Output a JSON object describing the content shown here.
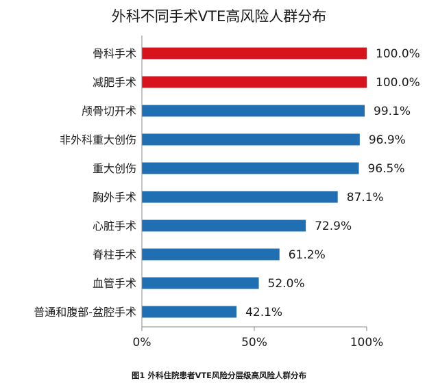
{
  "chart_data": {
    "type": "bar",
    "orientation": "horizontal",
    "title": "外科不同手术VTE高风险人群分布",
    "categories": [
      "骨科手术",
      "减肥手术",
      "颅骨切开术",
      "非外科重大创伤",
      "重大创伤",
      "胸外手术",
      "心脏手术",
      "脊柱手术",
      "血管手术",
      "普通和腹部-盆腔手术"
    ],
    "values": [
      100.0,
      100.0,
      99.1,
      96.9,
      96.5,
      87.1,
      72.9,
      61.2,
      52.0,
      42.1
    ],
    "value_labels": [
      "100.0%",
      "100.0%",
      "99.1%",
      "96.9%",
      "96.5%",
      "87.1%",
      "72.9%",
      "61.2%",
      "52.0%",
      "42.1%"
    ],
    "colors": [
      "#d7141e",
      "#d7141e",
      "#1f6fb2",
      "#1f6fb2",
      "#1f6fb2",
      "#1f6fb2",
      "#1f6fb2",
      "#1f6fb2",
      "#1f6fb2",
      "#1f6fb2"
    ],
    "xlim": [
      0,
      100
    ],
    "x_ticks": [
      0,
      50,
      100
    ],
    "x_tick_labels": [
      "0%",
      "50%",
      "100%"
    ],
    "xlabel": "",
    "ylabel": "",
    "grid": false,
    "legend": "none"
  },
  "caption": "图1 外科住院患者VTE风险分层级高风险人群分布"
}
